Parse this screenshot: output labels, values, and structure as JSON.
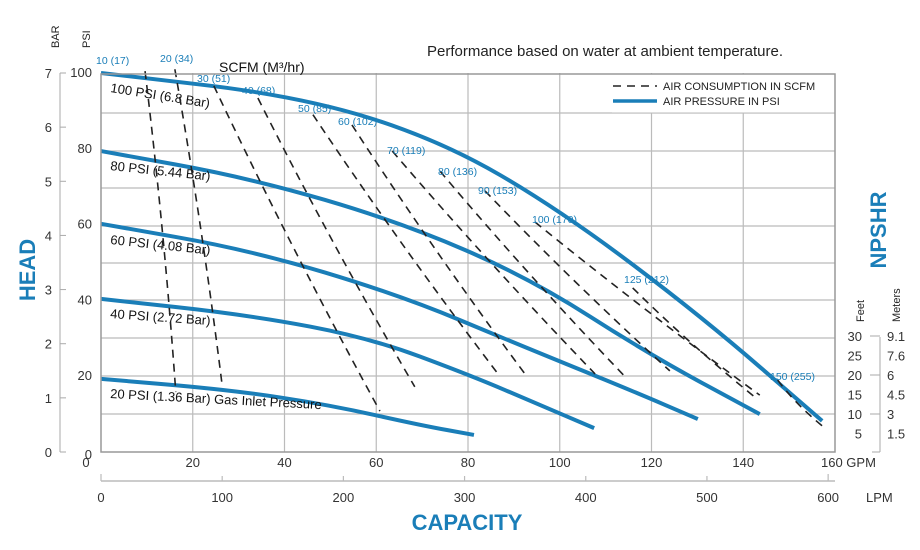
{
  "chart_data": {
    "type": "line",
    "title": "Performance based on water at ambient temperature.",
    "xlabel": "CAPACITY",
    "ylabel": "HEAD",
    "right_label": "NPSHR",
    "x_primary": {
      "unit": "GPM",
      "range": [
        0,
        160
      ],
      "ticks": [
        "0",
        "20",
        "40",
        "60",
        "80",
        "100",
        "120",
        "140",
        "160 GPM"
      ]
    },
    "x_secondary": {
      "unit": "LPM",
      "ticks": [
        0,
        100,
        200,
        300,
        400,
        500,
        600
      ],
      "tick_labels": [
        "0",
        "100",
        "200",
        "300",
        "400",
        "500",
        "600"
      ],
      "unit_label": "LPM"
    },
    "y_bar": {
      "unit_label": "BAR",
      "ticks": [
        "0",
        "1",
        "2",
        "3",
        "4",
        "5",
        "6",
        "7"
      ],
      "range": [
        0,
        7
      ]
    },
    "y_psi": {
      "unit_label": "PSI",
      "ticks": [
        "0",
        "20",
        "40",
        "60",
        "80",
        "100"
      ],
      "range": [
        0,
        100
      ]
    },
    "npshr": {
      "feet_label": "Feet",
      "meters_label": "Meters",
      "feet": [
        "30",
        "25",
        "20",
        "15",
        "10",
        "5"
      ],
      "meters": [
        "9.1",
        "7.6",
        "6",
        "4.5",
        "3",
        "1.5"
      ]
    },
    "scfm_header": "SCFM (M³/hr)",
    "grid": true,
    "legend": {
      "placement": "top-right",
      "items": [
        {
          "label": "AIR CONSUMPTION IN SCFM",
          "style": "dashed"
        },
        {
          "label": "AIR PRESSURE IN PSI",
          "style": "solid"
        }
      ]
    },
    "colors": {
      "pressure": "#1a7eb8",
      "air": "#222222",
      "grid": "#bbbbbb",
      "accent": "#1a7eb8"
    },
    "series": [
      {
        "name": "100 PSI (6.8 Bar)",
        "points": [
          [
            0,
            100
          ],
          [
            43.4,
            93.9
          ],
          [
            73.9,
            82.3
          ],
          [
            100,
            63.9
          ],
          [
            130.6,
            36.1
          ],
          [
            157.2,
            8.2
          ]
        ]
      },
      {
        "name": "80 PSI (5.44 Bar)",
        "points": [
          [
            0,
            79.4
          ],
          [
            32.5,
            72.3
          ],
          [
            65.2,
            60.7
          ],
          [
            93.5,
            45.9
          ],
          [
            119.7,
            25.6
          ],
          [
            143.6,
            10
          ]
        ]
      },
      {
        "name": "60 PSI (4.08 Bar)",
        "points": [
          [
            0,
            60.2
          ],
          [
            32.5,
            53.3
          ],
          [
            65.2,
            41.4
          ],
          [
            91.3,
            28.2
          ],
          [
            115.3,
            16.4
          ],
          [
            130.1,
            8.7
          ]
        ]
      },
      {
        "name": "40 PSI (2.72 Bar)",
        "points": [
          [
            0,
            40.4
          ],
          [
            32.5,
            36.1
          ],
          [
            58.6,
            30.1
          ],
          [
            80.4,
            20.3
          ],
          [
            95.7,
            12.4
          ],
          [
            107.5,
            6.3
          ]
        ]
      },
      {
        "name": "20 PSI (1.36 Bar) Gas Inlet Pressure",
        "points": [
          [
            0,
            19.3
          ],
          [
            28.1,
            16.4
          ],
          [
            49.9,
            12.4
          ],
          [
            69.5,
            7.1
          ],
          [
            81.3,
            4.5
          ]
        ]
      }
    ],
    "air_lines": [
      {
        "label": "10 (17)",
        "points": [
          [
            9.6,
            100.5
          ],
          [
            16.3,
            15.8
          ]
        ]
      },
      {
        "label": "20 (34)",
        "points": [
          [
            16.1,
            101
          ],
          [
            26.4,
            17.7
          ]
        ]
      },
      {
        "label": "30 (51)",
        "points": [
          [
            24.6,
            96.6
          ],
          [
            60.8,
            10.8
          ]
        ]
      },
      {
        "label": "40 (68)",
        "points": [
          [
            34.2,
            93.4
          ],
          [
            68.4,
            17.2
          ]
        ]
      },
      {
        "label": "50 (85)",
        "points": [
          [
            46.2,
            89
          ]
        ],
        "end": [
          [
            86.3,
            21
          ]
        ]
      },
      {
        "label": "60 (102)",
        "points": [
          [
            54.7,
            86.3
          ],
          [
            92.6,
            20.3
          ]
        ]
      },
      {
        "label": "70 (119)",
        "points": [
          [
            63.5,
            79.4
          ],
          [
            107.7,
            20.6
          ]
        ]
      },
      {
        "label": "80 (136)",
        "points": [
          [
            73.9,
            74.1
          ],
          [
            114.3,
            19.8
          ]
        ]
      },
      {
        "label": "90 (153)",
        "points": [
          [
            83.7,
            68.9
          ],
          [
            124,
            21.4
          ]
        ]
      },
      {
        "label": "100 (170)",
        "points": [
          [
            94.6,
            60.7
          ],
          [
            143.6,
            15.0
          ]
        ]
      },
      {
        "label": "125 (212)",
        "points": [
          [
            115.9,
            43.3
          ],
          [
            142.5,
            14.5
          ]
        ]
      },
      {
        "label": "150 (255)",
        "points": [
          [
            147.5,
            19.0
          ],
          [
            157.8,
            6.3
          ]
        ]
      }
    ]
  }
}
